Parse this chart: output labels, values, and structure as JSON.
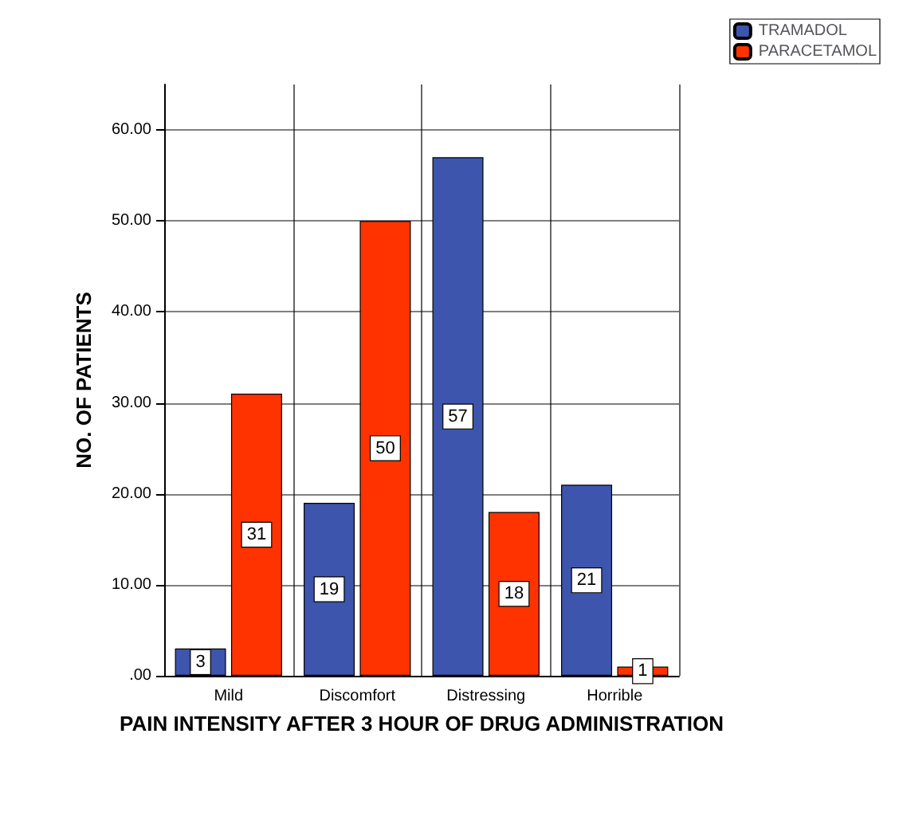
{
  "chart_data": {
    "type": "bar",
    "xlabel": "PAIN INTENSITY AFTER 3 HOUR OF DRUG ADMINISTRATION",
    "ylabel": "NO. OF PATIENTS",
    "categories": [
      "Mild",
      "Discomfort",
      "Distressing",
      "Horrible"
    ],
    "series": [
      {
        "name": "TRAMADOL",
        "color": "#3d55ad",
        "values": [
          3,
          19,
          57,
          21
        ]
      },
      {
        "name": "PARACETAMOL",
        "color": "#ff3300",
        "values": [
          31,
          50,
          18,
          1
        ]
      }
    ],
    "ylim": [
      0,
      65
    ],
    "yticks": [
      {
        "value": 0,
        "label": ".00"
      },
      {
        "value": 10,
        "label": "10.00"
      },
      {
        "value": 20,
        "label": "20.00"
      },
      {
        "value": 30,
        "label": "30.00"
      },
      {
        "value": 40,
        "label": "40.00"
      },
      {
        "value": 50,
        "label": "50.00"
      },
      {
        "value": 60,
        "label": "60.00"
      }
    ],
    "grid": true,
    "legend": "top right",
    "data_labels": true
  }
}
